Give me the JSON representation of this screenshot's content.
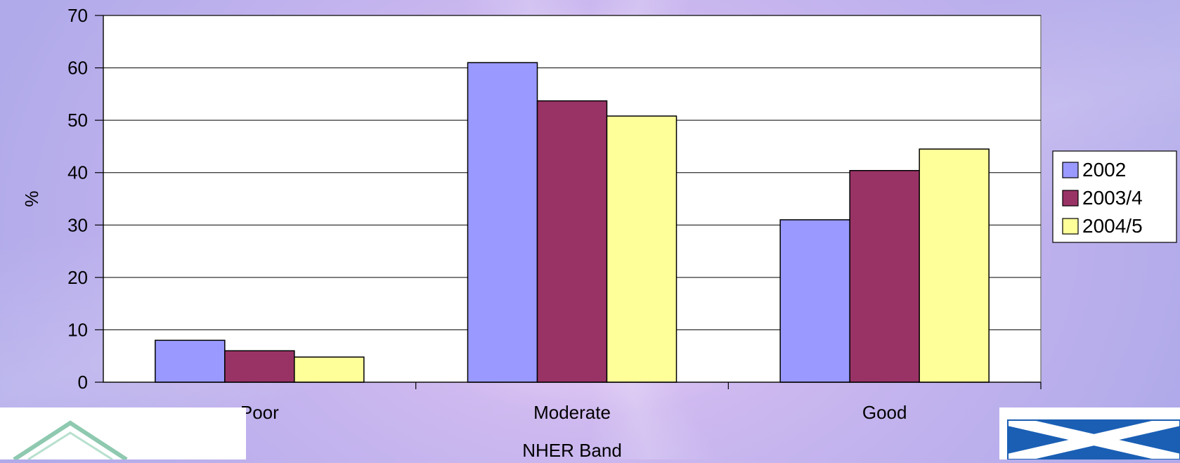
{
  "chart_data": {
    "type": "bar",
    "categories": [
      "Poor",
      "Moderate",
      "Good"
    ],
    "series": [
      {
        "name": "2002",
        "values": [
          8,
          61,
          31
        ],
        "color": "#9999ff"
      },
      {
        "name": "2003/4",
        "values": [
          6,
          53.7,
          40.4
        ],
        "color": "#993366"
      },
      {
        "name": "2004/5",
        "values": [
          4.8,
          50.8,
          44.5
        ],
        "color": "#ffff99"
      }
    ],
    "xlabel": "NHER Band",
    "ylabel": "%",
    "ylim": [
      0,
      70
    ],
    "yticks": [
      0,
      10,
      20,
      30,
      40,
      50,
      60,
      70
    ],
    "grid": true,
    "legend_position": "right"
  },
  "logos": {
    "left": "logo",
    "right": "saltire-flag"
  }
}
